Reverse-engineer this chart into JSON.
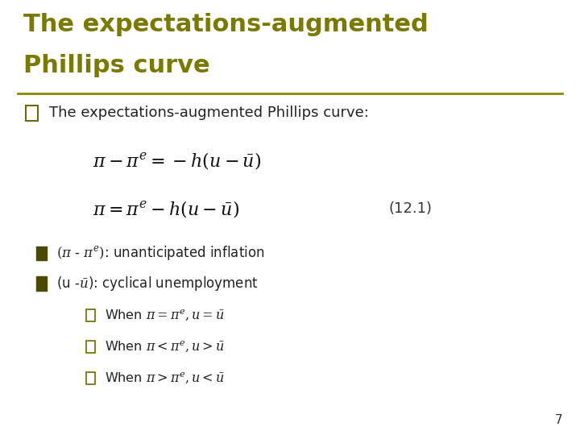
{
  "title_line1": "The expectations-augmented",
  "title_line2": "Phillips curve",
  "title_color": "#7a7a00",
  "title_fontsize": 22,
  "bg_color": "#ffffff",
  "line_color": "#8a8a00",
  "equation1": "$\\pi - \\pi^e = -h(u - \\bar{u})$",
  "equation2": "$\\pi = \\pi^e - h(u - \\bar{u})$",
  "eq_number": "(12.1)",
  "body_text": "The expectations-augmented Phillips curve:",
  "bullet1_text": "unanticipated inflation",
  "bullet2_text": "cyclical unemployment",
  "sub1": "When $\\pi = \\pi^e, u = \\bar{u}$",
  "sub2": "When $\\pi < \\pi^e, u > \\bar{u}$",
  "sub3": "When $\\pi > \\pi^e, u < \\bar{u}$",
  "page_number": "7",
  "square_color": "#6b6b00",
  "bullet_sq_color": "#4a4a00"
}
